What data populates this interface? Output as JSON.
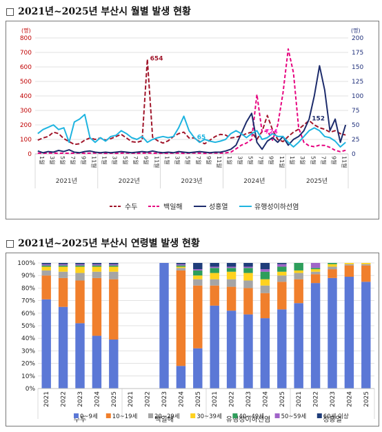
{
  "section1": {
    "title": "□  2021년~2025년 부산시 월별 발생 현황"
  },
  "section2": {
    "title": "□  2021년~2025년 부산시 연령별 발생 현황"
  },
  "chart_data": [
    {
      "type": "line",
      "left_unit": "(명)",
      "right_unit": "(명)",
      "ylim_left": [
        0,
        800
      ],
      "yticks_left": [
        "0",
        "100",
        "200",
        "300",
        "400",
        "500",
        "600",
        "700",
        "800"
      ],
      "ylim_right": [
        0,
        200
      ],
      "yticks_right": [
        "0",
        "25",
        "50",
        "75",
        "100",
        "125",
        "150",
        "175",
        "200"
      ],
      "month_labels": [
        "1월",
        "3월",
        "5월",
        "7월",
        "9월",
        "11월"
      ],
      "years": [
        "2021년",
        "2022년",
        "2023년",
        "2024년",
        "2025년"
      ],
      "annotations": [
        {
          "text": "654",
          "series": "수두",
          "index": 21,
          "color": "#a0152a"
        },
        {
          "text": "724",
          "series": "백일해",
          "index": 43,
          "color": "#ff33cc"
        },
        {
          "text": "152",
          "series": "성홍열",
          "index": 52,
          "color": "#1c2b6b"
        },
        {
          "text": "65",
          "series": "유행성이하선염",
          "index": 30,
          "color": "#1eb4e0"
        }
      ],
      "series": [
        {
          "name": "수두",
          "axis": "left",
          "color": "#a0152a",
          "dash": "6,3",
          "values": [
            95,
            110,
            120,
            150,
            140,
            105,
            85,
            65,
            70,
            95,
            110,
            100,
            110,
            95,
            105,
            120,
            135,
            110,
            85,
            80,
            90,
            654,
            115,
            90,
            75,
            90,
            120,
            140,
            150,
            110,
            110,
            85,
            70,
            95,
            120,
            135,
            130,
            110,
            115,
            125,
            140,
            150,
            100,
            155,
            265,
            165,
            100,
            85,
            120,
            150,
            170,
            200,
            230,
            200,
            180,
            170,
            150,
            160,
            140,
            130
          ]
        },
        {
          "name": "백일해",
          "axis": "left",
          "color": "#e6007e",
          "dash": "5,3",
          "values": [
            5,
            4,
            6,
            5,
            4,
            5,
            4,
            5,
            6,
            4,
            5,
            6,
            5,
            4,
            5,
            4,
            5,
            6,
            5,
            4,
            5,
            6,
            5,
            4,
            5,
            4,
            6,
            5,
            4,
            5,
            6,
            5,
            4,
            5,
            6,
            5,
            7,
            12,
            35,
            60,
            75,
            100,
            410,
            150,
            160,
            95,
            200,
            420,
            724,
            560,
            180,
            80,
            55,
            50,
            60,
            58,
            45,
            25,
            15,
            25
          ]
        },
        {
          "name": "성홍열",
          "axis": "right",
          "color": "#1c2b6b",
          "dash": "",
          "values": [
            5,
            2,
            4,
            3,
            6,
            4,
            7,
            3,
            2,
            4,
            5,
            3,
            2,
            3,
            2,
            3,
            4,
            3,
            2,
            3,
            4,
            3,
            5,
            3,
            2,
            3,
            2,
            4,
            3,
            2,
            3,
            4,
            3,
            2,
            3,
            3,
            5,
            8,
            15,
            35,
            55,
            70,
            20,
            8,
            22,
            28,
            20,
            30,
            15,
            25,
            30,
            40,
            60,
            100,
            152,
            110,
            40,
            60,
            20,
            50
          ]
        },
        {
          "name": "유행성이하선염",
          "axis": "right",
          "color": "#1eb4e0",
          "dash": "",
          "values": [
            35,
            42,
            46,
            50,
            42,
            45,
            20,
            55,
            60,
            68,
            28,
            20,
            28,
            22,
            30,
            32,
            40,
            35,
            28,
            25,
            30,
            20,
            25,
            28,
            30,
            28,
            30,
            45,
            65,
            40,
            28,
            20,
            25,
            22,
            20,
            22,
            25,
            35,
            40,
            35,
            28,
            35,
            40,
            25,
            28,
            35,
            30,
            30,
            20,
            12,
            20,
            30,
            40,
            45,
            40,
            30,
            28,
            22,
            12,
            20
          ]
        }
      ]
    },
    {
      "type": "bar",
      "stacked": true,
      "ylim": [
        0,
        100
      ],
      "yticks": [
        "0%",
        "10%",
        "20%",
        "30%",
        "40%",
        "50%",
        "60%",
        "70%",
        "80%",
        "90%",
        "100%"
      ],
      "groups": [
        {
          "name": "수두",
          "categories": [
            "2021",
            "2022",
            "2023",
            "2024",
            "2025"
          ]
        },
        {
          "name": "백일해",
          "categories": [
            "2021",
            "2022",
            "2023",
            "2024",
            "2025"
          ]
        },
        {
          "name": "유행성이하선염",
          "categories": [
            "2021",
            "2022",
            "2023",
            "2024",
            "2025"
          ]
        },
        {
          "name": "성홍열",
          "categories": [
            "2021",
            "2022",
            "2023",
            "2024",
            "2025"
          ]
        }
      ],
      "legend": [
        {
          "name": "0~9세",
          "color": "#5b78d6"
        },
        {
          "name": "10~19세",
          "color": "#f07f2c"
        },
        {
          "name": "20~29세",
          "color": "#a5a5a5"
        },
        {
          "name": "30~39세",
          "color": "#ffd21f"
        },
        {
          "name": "40~49세",
          "color": "#2e9e5b"
        },
        {
          "name": "50~59세",
          "color": "#a064c8"
        },
        {
          "name": "60세 이상",
          "color": "#1f3d7a"
        }
      ],
      "bars": [
        [
          71,
          19,
          4,
          3,
          1,
          1,
          1
        ],
        [
          65,
          23,
          5,
          4,
          1,
          1,
          1
        ],
        [
          52,
          34,
          6,
          5,
          1,
          1,
          1
        ],
        [
          42,
          46,
          5,
          4,
          1,
          1,
          1
        ],
        [
          39,
          48,
          6,
          4,
          1,
          1,
          1
        ],
        [
          0,
          0,
          0,
          0,
          0,
          0,
          0
        ],
        [
          0,
          0,
          0,
          0,
          0,
          0,
          0
        ],
        [
          100,
          0,
          0,
          0,
          0,
          0,
          0
        ],
        [
          18,
          76,
          2,
          1,
          1,
          1,
          1
        ],
        [
          32,
          50,
          5,
          3,
          4,
          1,
          5
        ],
        [
          66,
          16,
          5,
          5,
          4,
          1,
          3
        ],
        [
          62,
          19,
          6,
          6,
          3,
          1,
          3
        ],
        [
          59,
          21,
          6,
          6,
          4,
          1,
          3
        ],
        [
          56,
          20,
          6,
          5,
          6,
          2,
          5
        ],
        [
          63,
          22,
          5,
          3,
          4,
          2,
          1
        ],
        [
          68,
          19,
          5,
          2,
          6,
          0,
          0
        ],
        [
          84,
          7,
          2,
          2,
          1,
          4,
          0
        ],
        [
          88,
          7,
          2,
          2,
          1,
          0,
          0
        ],
        [
          89,
          9,
          1,
          1,
          0,
          0,
          0
        ],
        [
          85,
          13,
          1,
          1,
          0,
          0,
          0
        ]
      ]
    }
  ]
}
